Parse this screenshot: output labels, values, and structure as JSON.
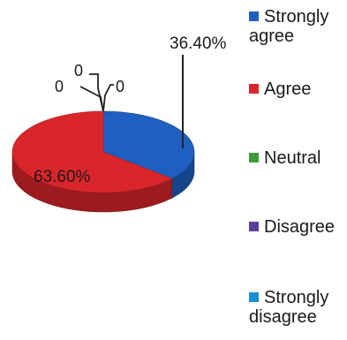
{
  "chart_data": {
    "type": "pie",
    "categories": [
      "Strongly agree",
      "Agree",
      "Neutral",
      "Disagree",
      "Strongly disagree"
    ],
    "values": [
      36.4,
      63.6,
      0,
      0,
      0
    ],
    "data_labels": [
      "36.40%",
      "63.60%",
      "0",
      "0",
      "0"
    ],
    "colors": [
      "#1f5fbf",
      "#d9262b",
      "#3e9b3a",
      "#5a3fa0",
      "#1a8fd0"
    ],
    "legend_position": "right",
    "three_d": true
  },
  "legend": [
    {
      "label": "Strongly agree",
      "color": "#1f5fbf"
    },
    {
      "label": "Agree",
      "color": "#d9262b"
    },
    {
      "label": "Neutral",
      "color": "#3e9b3a"
    },
    {
      "label": "Disagree",
      "color": "#5a3fa0"
    },
    {
      "label": "Strongly disagree",
      "color": "#1a8fd0"
    }
  ]
}
